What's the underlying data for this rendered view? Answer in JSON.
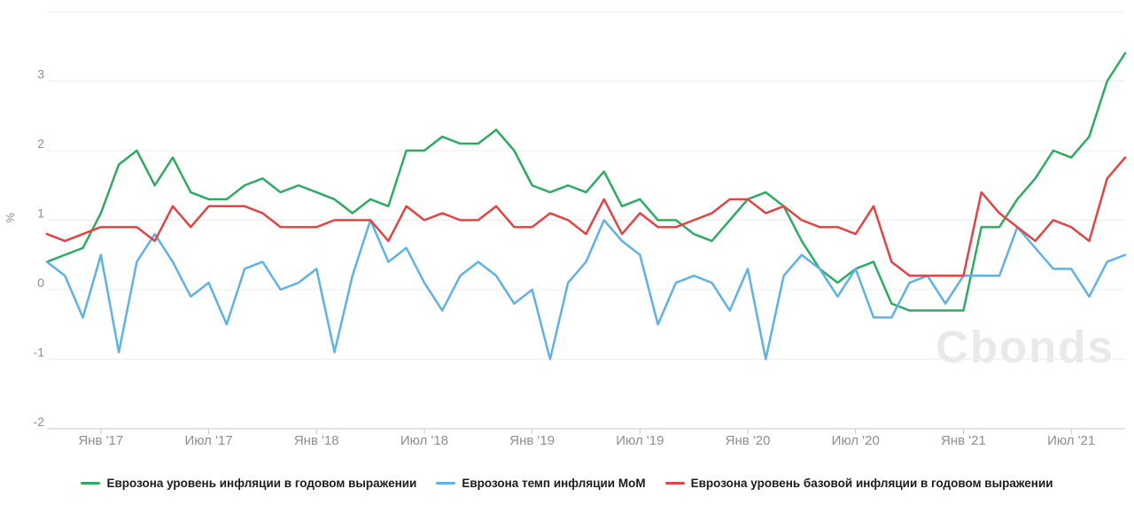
{
  "chart": {
    "watermark": "Cbonds",
    "y_axis": {
      "unit_label": "%",
      "tick_values": [
        3,
        2,
        1,
        0,
        -1,
        -2
      ],
      "grid_values": [
        4,
        3,
        2,
        1,
        0,
        -1,
        -2
      ],
      "min": -2,
      "max": 4
    },
    "x_axis": {
      "tick_labels": [
        "Янв '17",
        "Июл '17",
        "Янв '18",
        "Июл '18",
        "Янв '19",
        "Июл '19",
        "Янв '20",
        "Июл '20",
        "Янв '21",
        "Июл '21"
      ],
      "tick_indices": [
        3,
        9,
        15,
        21,
        27,
        33,
        39,
        45,
        51,
        57
      ]
    },
    "colors": {
      "grid": "#ededed",
      "axis_line": "#c9c9c9",
      "tick": "#c9c9c9",
      "axis_label": "#8e8e8e",
      "legend_text": "#1c1c1c",
      "watermark": "#e9e9e9"
    }
  },
  "chart_data": {
    "type": "line",
    "title": "",
    "xlabel": "",
    "ylabel": "%",
    "ylim": [
      -2,
      4
    ],
    "grid": true,
    "legend_position": "bottom",
    "x": [
      "2016-09",
      "2016-10",
      "2016-11",
      "2016-12",
      "2017-01",
      "2017-02",
      "2017-03",
      "2017-04",
      "2017-05",
      "2017-06",
      "2017-07",
      "2017-08",
      "2017-09",
      "2017-10",
      "2017-11",
      "2017-12",
      "2018-01",
      "2018-02",
      "2018-03",
      "2018-04",
      "2018-05",
      "2018-06",
      "2018-07",
      "2018-08",
      "2018-09",
      "2018-10",
      "2018-11",
      "2018-12",
      "2019-01",
      "2019-02",
      "2019-03",
      "2019-04",
      "2019-05",
      "2019-06",
      "2019-07",
      "2019-08",
      "2019-09",
      "2019-10",
      "2019-11",
      "2019-12",
      "2020-01",
      "2020-02",
      "2020-03",
      "2020-04",
      "2020-05",
      "2020-06",
      "2020-07",
      "2020-08",
      "2020-09",
      "2020-10",
      "2020-11",
      "2020-12",
      "2021-01",
      "2021-02",
      "2021-03",
      "2021-04",
      "2021-05",
      "2021-06",
      "2021-07",
      "2021-08",
      "2021-09"
    ],
    "series": [
      {
        "name": "Еврозона уровень инфляции в годовом выражении",
        "color": "#2eab63",
        "values": [
          0.4,
          0.5,
          0.6,
          1.1,
          1.8,
          2.0,
          1.5,
          1.9,
          1.4,
          1.3,
          1.3,
          1.5,
          1.6,
          1.4,
          1.5,
          1.4,
          1.3,
          1.1,
          1.3,
          1.2,
          2.0,
          2.0,
          2.2,
          2.1,
          2.1,
          2.3,
          2.0,
          1.5,
          1.4,
          1.5,
          1.4,
          1.7,
          1.2,
          1.3,
          1.0,
          1.0,
          0.8,
          0.7,
          1.0,
          1.3,
          1.4,
          1.2,
          0.7,
          0.3,
          0.1,
          0.3,
          0.4,
          -0.2,
          -0.3,
          -0.3,
          -0.3,
          -0.3,
          0.9,
          0.9,
          1.3,
          1.6,
          2.0,
          1.9,
          2.2,
          3.0,
          3.4
        ]
      },
      {
        "name": "Еврозона темп инфляции MoM",
        "color": "#5fb2e2",
        "values": [
          0.4,
          0.2,
          -0.4,
          0.5,
          -0.9,
          0.4,
          0.8,
          0.4,
          -0.1,
          0.1,
          -0.5,
          0.3,
          0.4,
          0.0,
          0.1,
          0.3,
          -0.9,
          0.2,
          1.0,
          0.4,
          0.6,
          0.1,
          -0.3,
          0.2,
          0.4,
          0.2,
          -0.2,
          0.0,
          -1.0,
          0.1,
          0.4,
          1.0,
          0.7,
          0.5,
          -0.5,
          0.1,
          0.2,
          0.1,
          -0.3,
          0.3,
          -1.0,
          0.2,
          0.5,
          0.3,
          -0.1,
          0.3,
          -0.4,
          -0.4,
          0.1,
          0.2,
          -0.2,
          0.2,
          0.2,
          0.2,
          0.9,
          0.6,
          0.3,
          0.3,
          -0.1,
          0.4,
          0.5
        ]
      },
      {
        "name": "Еврозона уровень базовой инфляции в годовом выражении",
        "color": "#e04444",
        "values": [
          0.8,
          0.7,
          0.8,
          0.9,
          0.9,
          0.9,
          0.7,
          1.2,
          0.9,
          1.2,
          1.2,
          1.2,
          1.1,
          0.9,
          0.9,
          0.9,
          1.0,
          1.0,
          1.0,
          0.7,
          1.2,
          1.0,
          1.1,
          1.0,
          1.0,
          1.2,
          0.9,
          0.9,
          1.1,
          1.0,
          0.8,
          1.3,
          0.8,
          1.1,
          0.9,
          0.9,
          1.0,
          1.1,
          1.3,
          1.3,
          1.1,
          1.2,
          1.0,
          0.9,
          0.9,
          0.8,
          1.2,
          0.4,
          0.2,
          0.2,
          0.2,
          0.2,
          1.4,
          1.1,
          0.9,
          0.7,
          1.0,
          0.9,
          0.7,
          1.6,
          1.9
        ]
      }
    ]
  }
}
